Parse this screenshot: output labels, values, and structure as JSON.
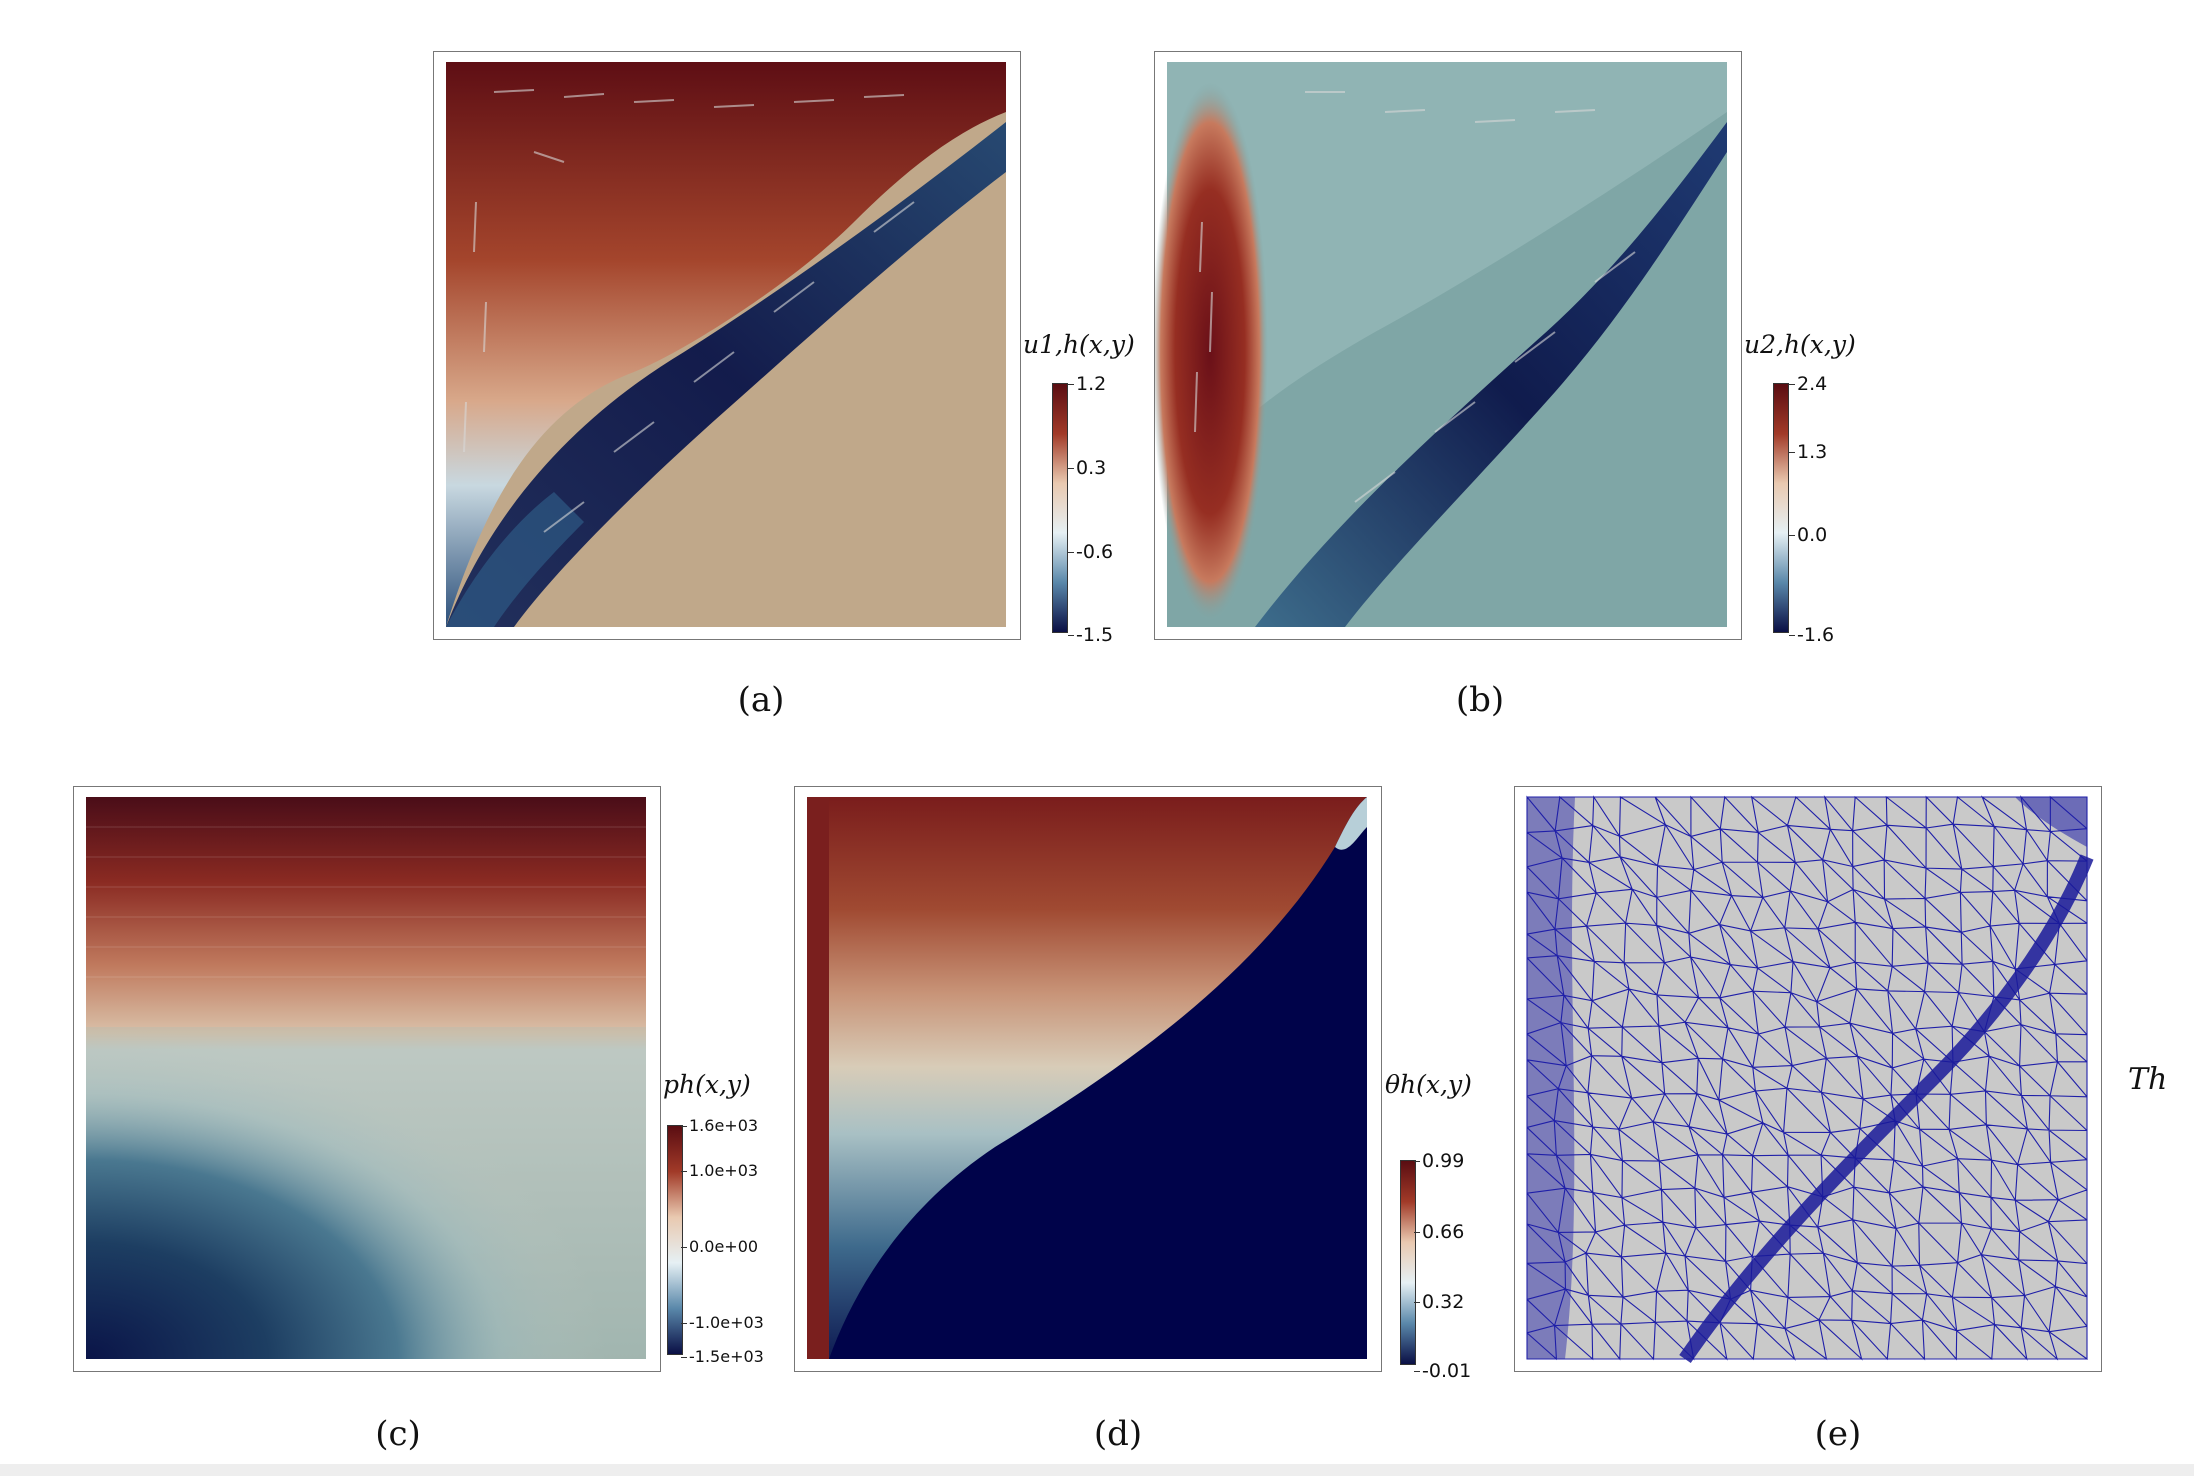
{
  "panels": [
    {
      "caption": "(a)",
      "colorbar": {
        "label": "u1,h(x,y)",
        "ticks": [
          "1.2",
          "0.3",
          "-0.6",
          "-1.5"
        ]
      }
    },
    {
      "caption": "(b)",
      "colorbar": {
        "label": "u2,h(x,y)",
        "ticks": [
          "2.4",
          "1.3",
          "0.0",
          "-1.6"
        ]
      }
    },
    {
      "caption": "(c)",
      "colorbar": {
        "label": "ph(x,y)",
        "ticks": [
          "1.6e+03",
          "1.0e+03",
          "0.0e+00",
          "-1.0e+03",
          "-1.5e+03"
        ]
      }
    },
    {
      "caption": "(d)",
      "colorbar": {
        "label": "θh(x,y)",
        "ticks": [
          "0.99",
          "0.66",
          "0.32",
          "-0.01"
        ]
      }
    },
    {
      "caption": "(e)",
      "mesh_label": "Th"
    }
  ],
  "colors": {
    "dark_red": "#5a0d12",
    "red": "#9a3325",
    "tan": "#c0a88a",
    "teal": "#7fa6a6",
    "dark_blue": "#0a0f45",
    "mesh_blue": "#1f1fa8",
    "mesh_bg": "#c9c9c9"
  }
}
